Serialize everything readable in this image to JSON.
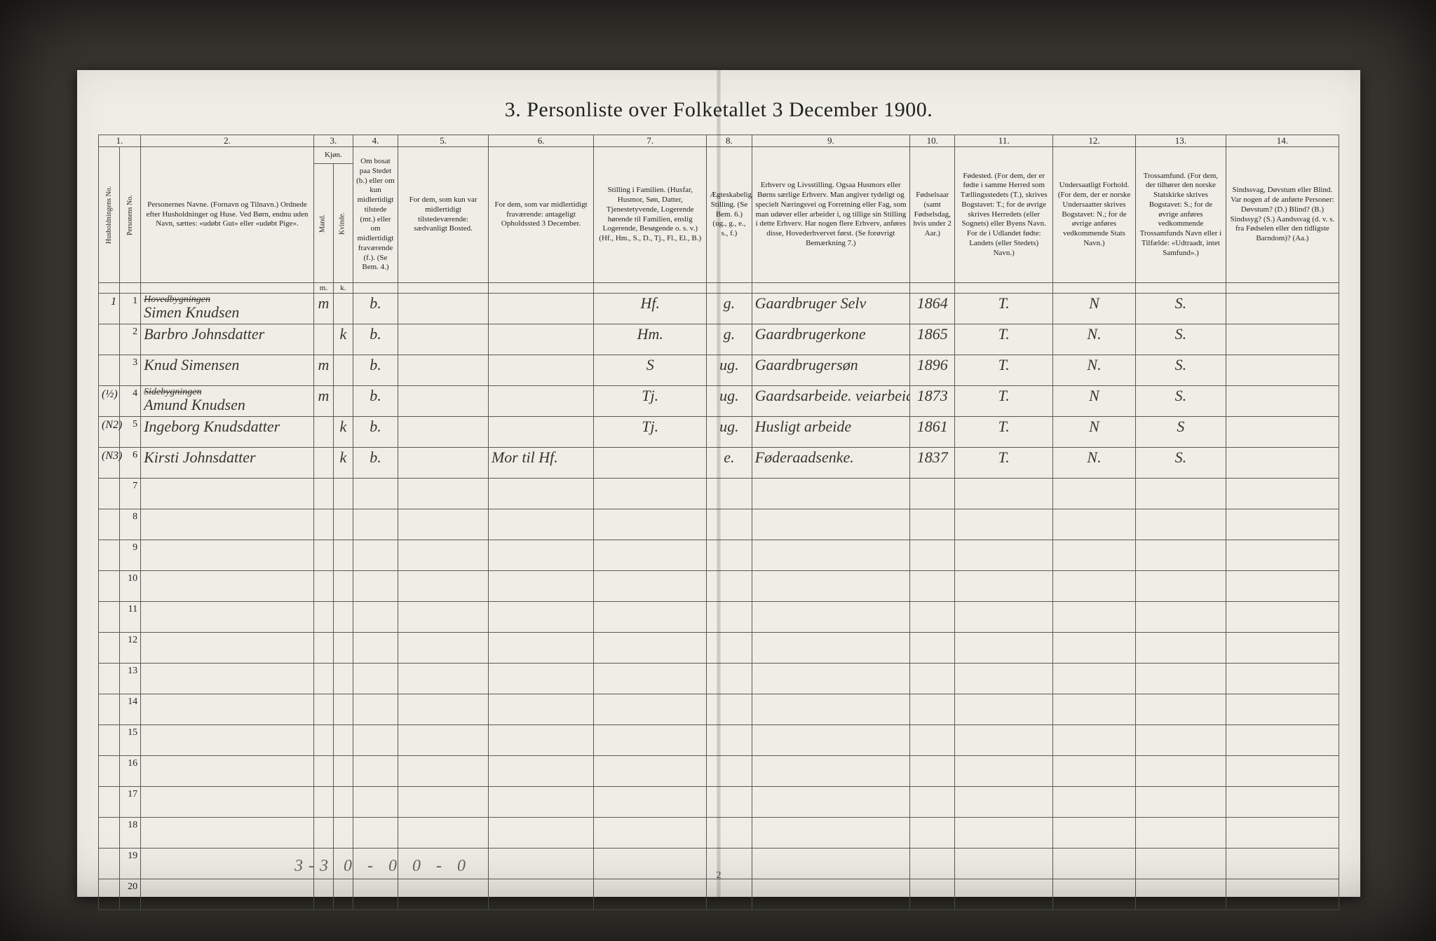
{
  "title": "3. Personliste over Folketallet 3 December 1900.",
  "page_number": "2",
  "footer_tally": "3-3    0 - 0    0 - 0",
  "colors": {
    "page_bg": "#efeee6",
    "ink": "#222222",
    "hand_ink": "#3a352a",
    "border": "#5a5a52",
    "outer_bg": "#3a3832"
  },
  "column_numbers": [
    "1.",
    "2.",
    "3.",
    "4.",
    "5.",
    "6.",
    "7.",
    "8.",
    "9.",
    "10.",
    "11.",
    "12.",
    "13.",
    "14."
  ],
  "headers": {
    "hh": "Husholdningens No.",
    "pn": "Personens No.",
    "name": "Personernes Navne.\n(Fornavn og Tilnavn.)\nOrdnede efter Husholdninger og Huse.\nVed Børn, endnu uden Navn, sættes: «udøbt Gut» eller «udøbt Pige».",
    "sex": "Kjøn.",
    "sex_m": "Mand.",
    "sex_k": "Kvinde.",
    "presence": "Om bosat paa Stedet (b.) eller om kun midlertidigt tilstede (mt.) eller om midlertidigt fraværende (f.). (Se Bem. 4.)",
    "temp_present": "For dem, som kun var midlertidigt tilstedeværende:\nsædvanligt Bosted.",
    "temp_absent": "For dem, som var midlertidigt fraværende:\nantageligt Opholdssted 3 December.",
    "fam_pos": "Stilling i Familien.\n(Husfar, Husmor, Søn, Datter, Tjenestetyvende, Logerende hørende til Familien, enslig Logerende, Besøgende o. s. v.)\n(Hf., Hm., S., D., Tj., Fl., El., B.)",
    "civil": "Ægteskabelig Stilling.\n(Se Bem. 6.)\n(ug., g., e., s., f.)",
    "occupation": "Erhverv og Livsstilling.\nOgsaa Husmors eller Børns særlige Erhverv. Man angiver tydeligt og specielt Næringsvei og Forretning eller Fag, som man udøver eller arbeider i, og tillige sin Stilling i dette Erhverv. Har nogen flere Erhverv, anføres disse, Hovederhvervet først.\n(Se forøvrigt Bemærkning 7.)",
    "birth_year": "Fødselsaar\n(samt Fødselsdag, hvis under 2 Aar.)",
    "birth_place": "Fødested.\n(For dem, der er fødte i samme Herred som Tællingsstedets (T.), skrives Bogstavet: T.; for de øvrige skrives Herredets (eller Sognets) eller Byens Navn. For de i Udlandet fødte: Landets (eller Stedets) Navn.)",
    "nationality": "Undersaatligt Forhold.\n(For dem, der er norske Undersaatter skrives Bogstavet: N.; for de øvrige anføres vedkommende Stats Navn.)",
    "religion": "Trossamfund.\n(For dem, der tilhører den norske Statskirke skrives Bogstavet: S.; for de øvrige anføres vedkommende Trossamfunds Navn eller i Tilfælde: «Udtraadt, intet Samfund».)",
    "disability": "Sindssvag, Døvstum eller Blind.\nVar nogen af de anførte Personer:\nDøvstum?  (D.)\nBlind?  (B.)\nSindssyg?  (S.)\nAandssvag (d. v. s. fra Fødselen eller den tidligste Barndom)? (Aa.)"
  },
  "sub_headers": {
    "m": "m.",
    "k": "k."
  },
  "rows": [
    {
      "hh": "1",
      "pn": "1",
      "name_struck": "Hovedbygningen",
      "name": "Simen Knudsen",
      "sex_m": "m",
      "sex_k": "",
      "presence": "b.",
      "temp_present": "",
      "temp_absent": "",
      "fam_pos": "Hf.",
      "civil": "g.",
      "occupation": "Gaardbruger  Selv",
      "birth_year": "1864",
      "birth_place": "T.",
      "nationality": "N",
      "religion": "S.",
      "disability": ""
    },
    {
      "hh": "",
      "pn": "2",
      "name_struck": "",
      "name": "Barbro Johnsdatter",
      "sex_m": "",
      "sex_k": "k",
      "presence": "b.",
      "temp_present": "",
      "temp_absent": "",
      "fam_pos": "Hm.",
      "civil": "g.",
      "occupation": "Gaardbrugerkone",
      "birth_year": "1865",
      "birth_place": "T.",
      "nationality": "N.",
      "religion": "S.",
      "disability": ""
    },
    {
      "hh": "",
      "pn": "3",
      "name_struck": "",
      "name": "Knud Simensen",
      "sex_m": "m",
      "sex_k": "",
      "presence": "b.",
      "temp_present": "",
      "temp_absent": "",
      "fam_pos": "S",
      "civil": "ug.",
      "occupation": "Gaardbrugersøn",
      "birth_year": "1896",
      "birth_place": "T.",
      "nationality": "N.",
      "religion": "S.",
      "disability": ""
    },
    {
      "hh": "(½)",
      "pn": "4",
      "name_struck": "Sidebygningen",
      "name": "Amund Knudsen",
      "sex_m": "m",
      "sex_k": "",
      "presence": "b.",
      "temp_present": "",
      "temp_absent": "",
      "fam_pos": "Tj.",
      "civil": "ug.",
      "occupation": "Gaardsarbeide. veiarbeid",
      "birth_year": "1873",
      "birth_place": "T.",
      "nationality": "N",
      "religion": "S.",
      "disability": ""
    },
    {
      "hh": "(N2)",
      "pn": "5",
      "name_struck": "",
      "name": "Ingeborg Knudsdatter",
      "sex_m": "",
      "sex_k": "k",
      "presence": "b.",
      "temp_present": "",
      "temp_absent": "",
      "fam_pos": "Tj.",
      "civil": "ug.",
      "occupation": "Husligt arbeide",
      "birth_year": "1861",
      "birth_place": "T.",
      "nationality": "N",
      "religion": "S",
      "disability": ""
    },
    {
      "hh": "(N3)",
      "pn": "6",
      "name_struck": "",
      "name": "Kirsti Johnsdatter",
      "sex_m": "",
      "sex_k": "k",
      "presence": "b.",
      "temp_present": "",
      "temp_absent": "Mor til Hf.",
      "fam_pos": "",
      "civil": "e.",
      "occupation": "Føderaadsenke.",
      "birth_year": "1837",
      "birth_place": "T.",
      "nationality": "N.",
      "religion": "S.",
      "disability": ""
    }
  ],
  "blank_row_numbers": [
    "7",
    "8",
    "9",
    "10",
    "11",
    "12",
    "13",
    "14",
    "15",
    "16",
    "17",
    "18",
    "19",
    "20"
  ]
}
